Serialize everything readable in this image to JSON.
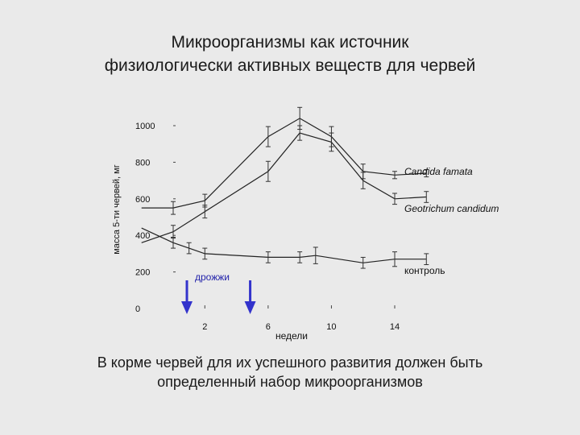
{
  "slide": {
    "title_line1": "Микроорганизмы как источник",
    "title_line2": "физиологически активных веществ для червей",
    "caption_line1": "В корме червей для их успешного развития должен быть",
    "caption_line2": "определенный набор микроорганизмов"
  },
  "chart_data": {
    "type": "line",
    "title": "",
    "xlabel": "недели",
    "ylabel": "масса 5-ти червей, мг",
    "xlim": [
      -2,
      17
    ],
    "ylim": [
      0,
      1000
    ],
    "x_ticks": [
      2,
      6,
      10,
      14
    ],
    "y_ticks": [
      0,
      200,
      400,
      600,
      800,
      1000
    ],
    "grid": false,
    "series": [
      {
        "name": "Candida famata",
        "color": "#222222",
        "points": [
          [
            -2,
            550
          ],
          [
            0,
            550
          ],
          [
            2,
            590
          ],
          [
            6,
            940
          ],
          [
            8,
            1040
          ],
          [
            10,
            940
          ],
          [
            12,
            750
          ],
          [
            14,
            730
          ],
          [
            16,
            740
          ]
        ],
        "errors": [
          0,
          35,
          35,
          55,
          60,
          55,
          40,
          20,
          20
        ]
      },
      {
        "name": "Geotrichum candidum",
        "color": "#222222",
        "points": [
          [
            -2,
            360
          ],
          [
            0,
            420
          ],
          [
            2,
            530
          ],
          [
            6,
            750
          ],
          [
            8,
            960
          ],
          [
            10,
            910
          ],
          [
            12,
            700
          ],
          [
            14,
            600
          ],
          [
            16,
            610
          ]
        ],
        "errors": [
          0,
          35,
          35,
          55,
          40,
          50,
          45,
          30,
          30
        ]
      },
      {
        "name": "контроль",
        "color": "#222222",
        "points": [
          [
            -2,
            440
          ],
          [
            0,
            360
          ],
          [
            1,
            330
          ],
          [
            2,
            300
          ],
          [
            6,
            280
          ],
          [
            8,
            280
          ],
          [
            9,
            290
          ],
          [
            12,
            250
          ],
          [
            14,
            270
          ],
          [
            16,
            270
          ]
        ],
        "errors": [
          0,
          30,
          30,
          30,
          30,
          30,
          45,
          30,
          40,
          30
        ]
      }
    ],
    "annotations": [
      {
        "text": "дрожжи",
        "color": "#2222aa"
      }
    ],
    "arrows": [
      {
        "x": 0,
        "color": "#3333cc"
      },
      {
        "x": 4,
        "color": "#3333cc"
      }
    ]
  }
}
